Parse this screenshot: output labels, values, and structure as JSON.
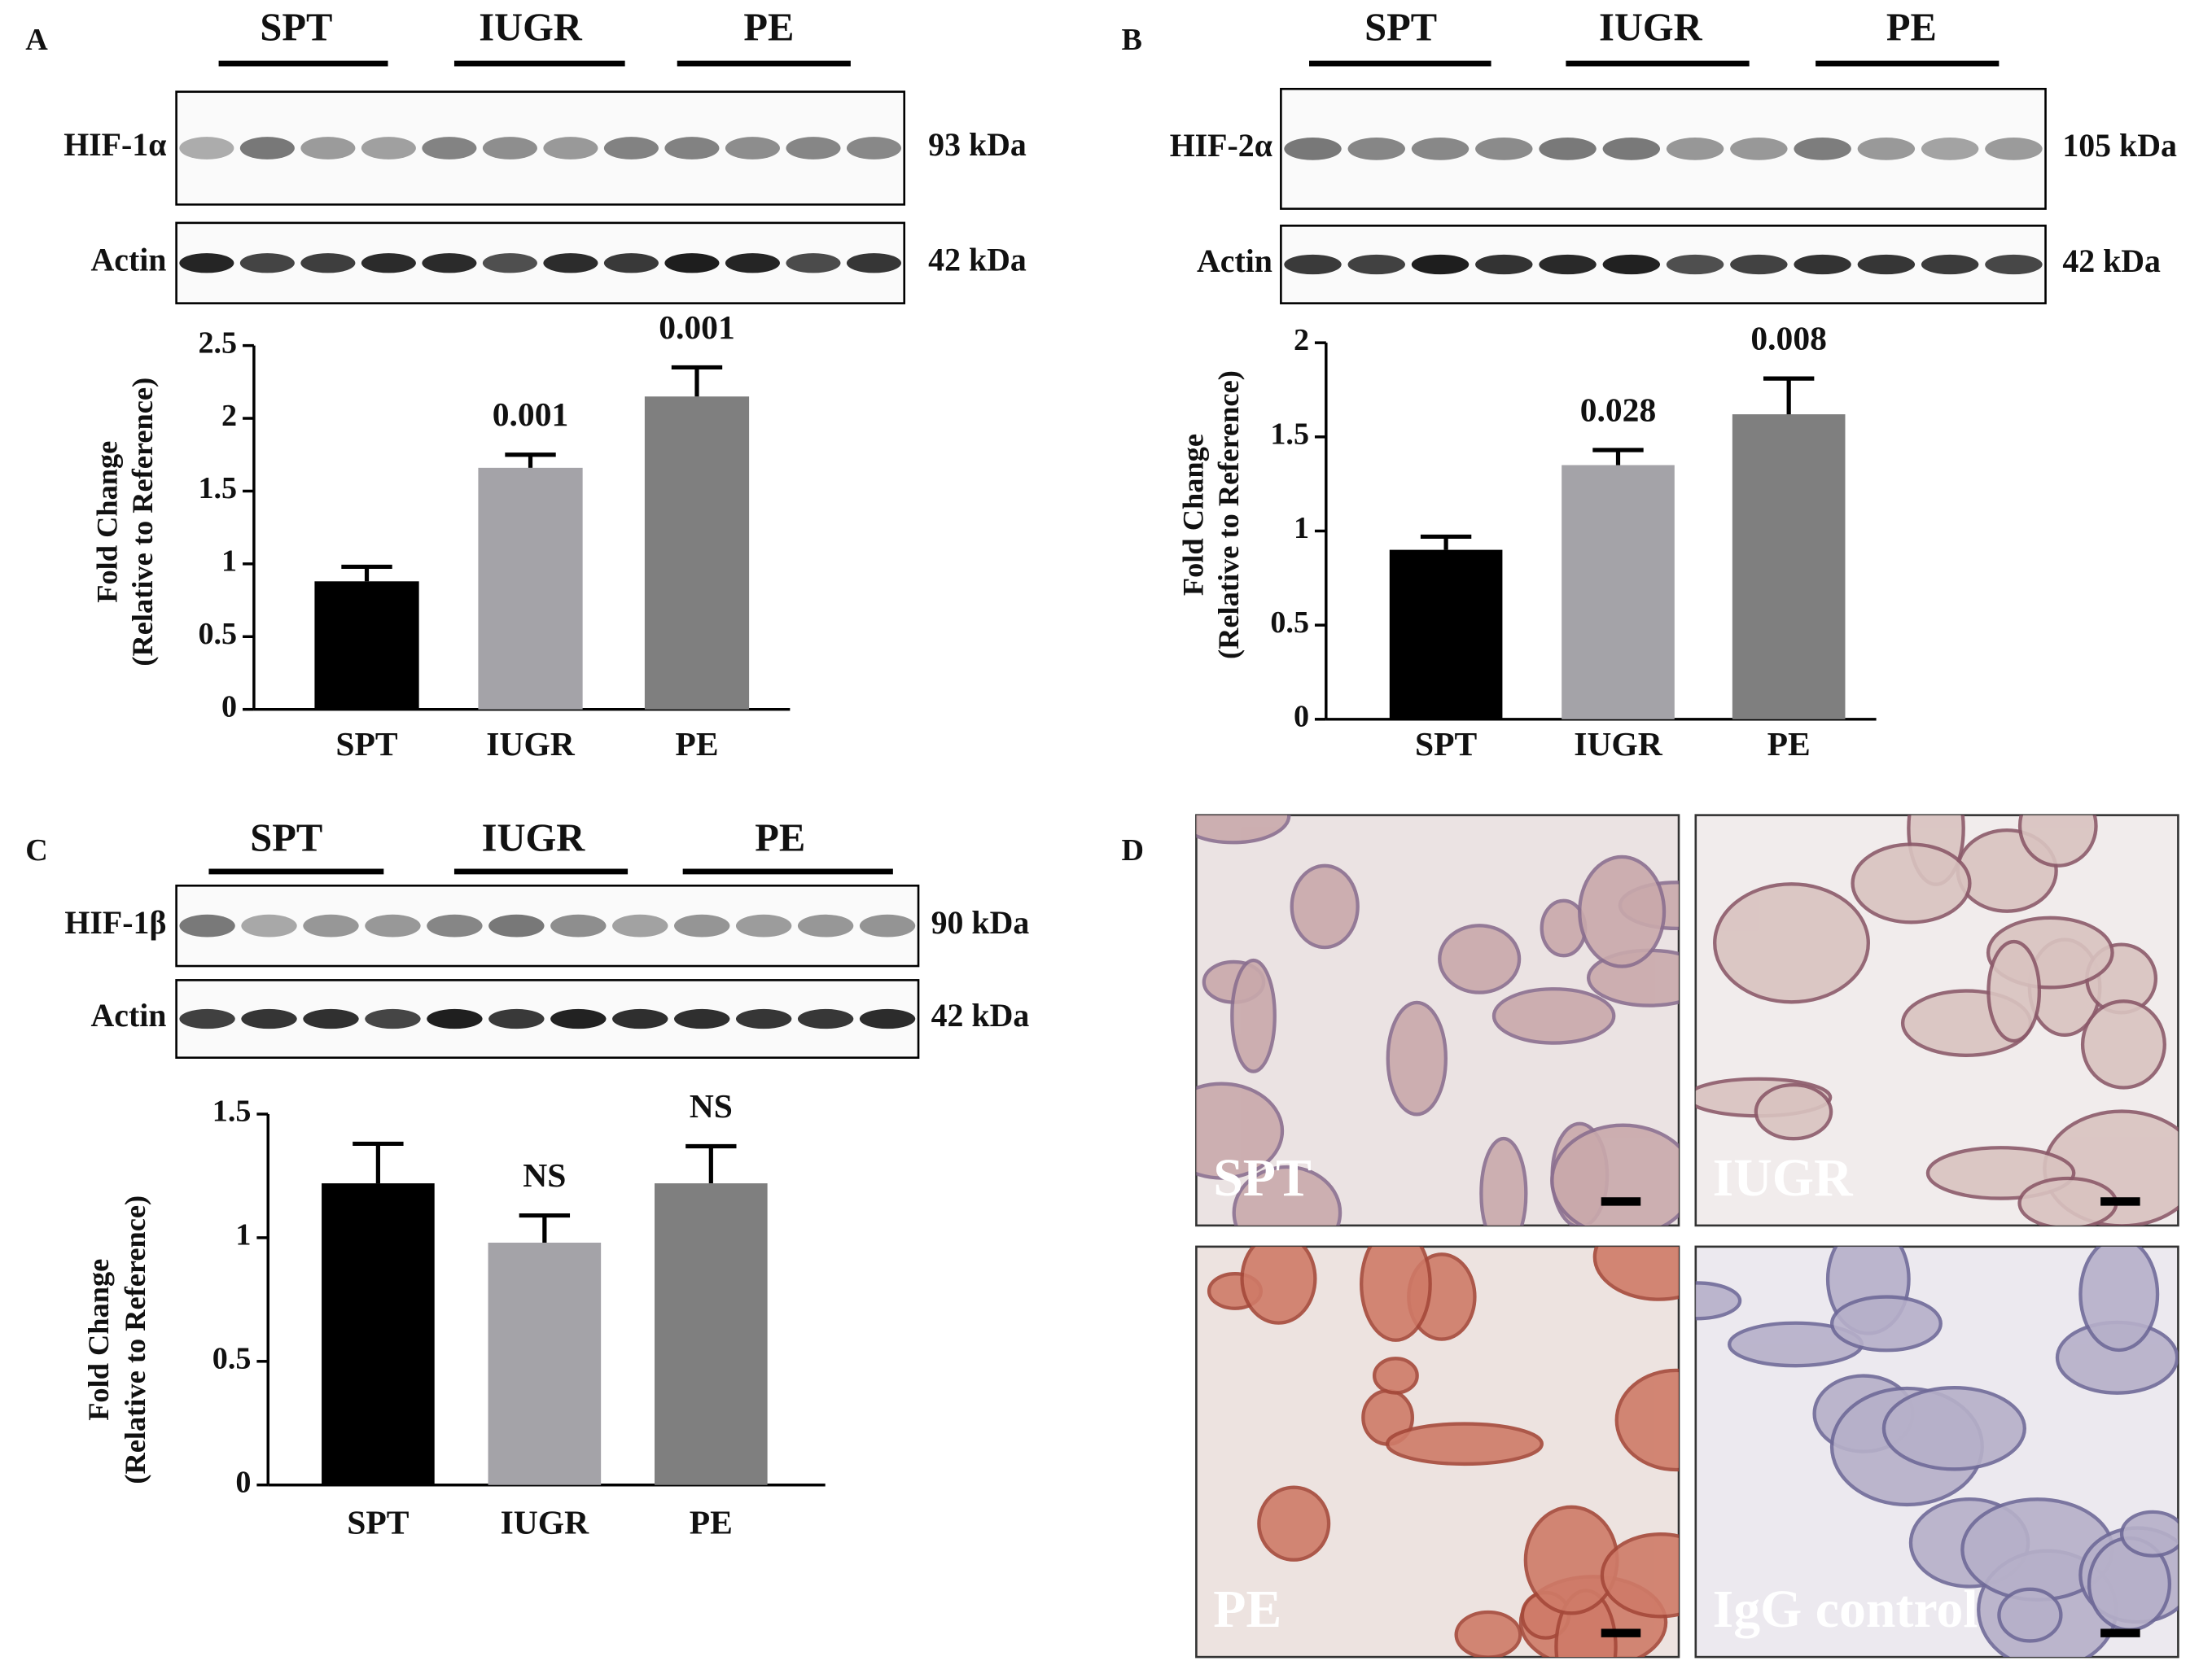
{
  "chart_data": [
    {
      "type": "bar",
      "panel": "A",
      "blot": {
        "groups": [
          "SPT",
          "IUGR",
          "PE"
        ],
        "rows": [
          {
            "label": "HIF-1α",
            "size": "93 kDa"
          },
          {
            "label": "Actin",
            "size": "42 kDa"
          }
        ]
      },
      "ylabel": [
        "Fold Change",
        "(Relative to Reference)"
      ],
      "categories": [
        "SPT",
        "IUGR",
        "PE"
      ],
      "values": [
        0.88,
        1.66,
        2.15
      ],
      "errors": [
        0.1,
        0.09,
        0.2
      ],
      "annotations": [
        null,
        "0.001",
        "0.001"
      ],
      "colors": [
        "#000000",
        "#a4a3a8",
        "#7f7f7f"
      ],
      "ylim": [
        0,
        2.5
      ],
      "yticks": [
        0,
        0.5,
        1,
        1.5,
        2,
        2.5
      ]
    },
    {
      "type": "bar",
      "panel": "B",
      "blot": {
        "groups": [
          "SPT",
          "IUGR",
          "PE"
        ],
        "rows": [
          {
            "label": "HIF-2α",
            "size": "105 kDa"
          },
          {
            "label": "Actin",
            "size": "42 kDa"
          }
        ]
      },
      "ylabel": [
        "Fold Change",
        "(Relative to Reference)"
      ],
      "categories": [
        "SPT",
        "IUGR",
        "PE"
      ],
      "values": [
        0.9,
        1.35,
        1.62
      ],
      "errors": [
        0.07,
        0.08,
        0.19
      ],
      "annotations": [
        null,
        "0.028",
        "0.008"
      ],
      "colors": [
        "#000000",
        "#a4a3a8",
        "#7f7f7f"
      ],
      "ylim": [
        0,
        2
      ],
      "yticks": [
        0,
        0.5,
        1,
        1.5,
        2
      ]
    },
    {
      "type": "bar",
      "panel": "C",
      "blot": {
        "groups": [
          "SPT",
          "IUGR",
          "PE"
        ],
        "rows": [
          {
            "label": "HIF-1β",
            "size": "90 kDa"
          },
          {
            "label": "Actin",
            "size": "42 kDa"
          }
        ]
      },
      "ylabel": [
        "Fold Change",
        "(Relative to Reference)"
      ],
      "categories": [
        "SPT",
        "IUGR",
        "PE"
      ],
      "values": [
        1.22,
        0.98,
        1.22
      ],
      "errors": [
        0.16,
        0.11,
        0.15
      ],
      "annotations": [
        null,
        "NS",
        "NS"
      ],
      "colors": [
        "#000000",
        "#a4a3a8",
        "#7f7f7f"
      ],
      "ylim": [
        0,
        1.5
      ],
      "yticks": [
        0,
        0.5,
        1,
        1.5
      ]
    }
  ],
  "histology": {
    "panel": "D",
    "images": [
      "SPT",
      "IUGR",
      "PE",
      "IgG control"
    ]
  }
}
